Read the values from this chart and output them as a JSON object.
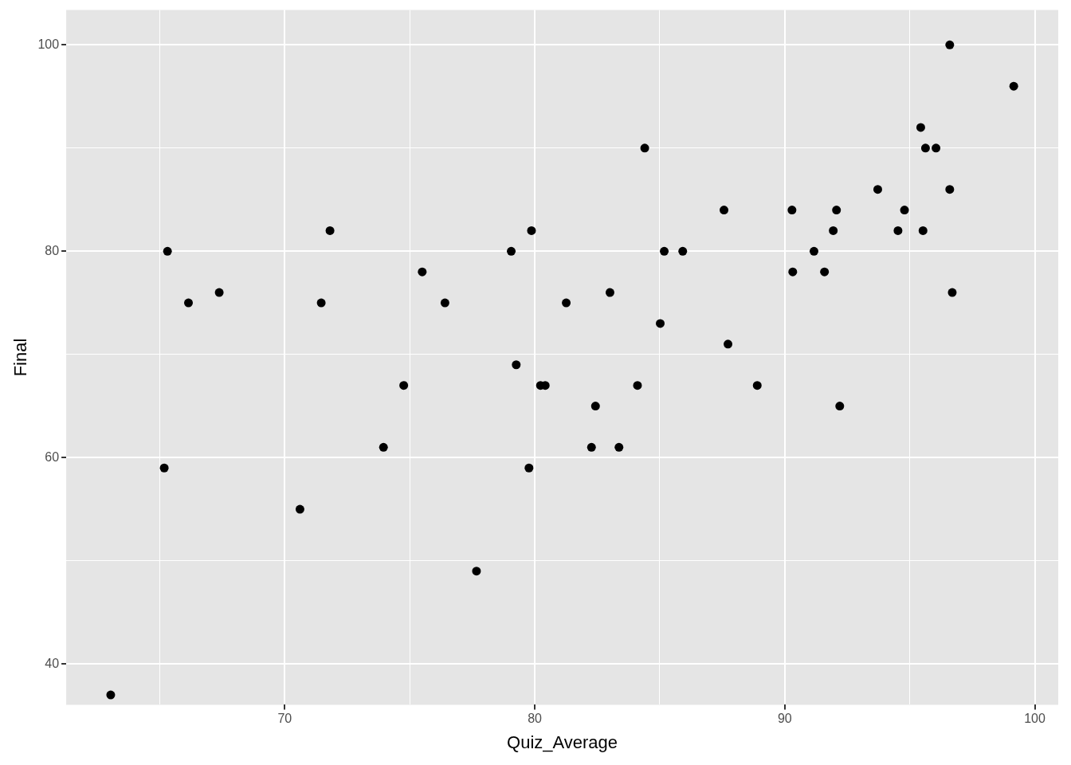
{
  "chart_data": {
    "type": "scatter",
    "xlabel": "Quiz_Average",
    "ylabel": "Final",
    "x": [
      63.04,
      65.18,
      65.31,
      66.15,
      67.38,
      70.61,
      71.46,
      71.81,
      73.95,
      74.76,
      75.5,
      76.41,
      77.67,
      79.06,
      79.26,
      79.77,
      79.87,
      80.23,
      80.42,
      81.26,
      82.27,
      82.43,
      83.01,
      83.37,
      84.11,
      84.4,
      85.02,
      85.18,
      85.92,
      87.57,
      87.73,
      88.9,
      90.29,
      90.32,
      91.17,
      91.59,
      91.94,
      92.07,
      92.2,
      93.72,
      94.53,
      94.79,
      95.44,
      95.53,
      95.63,
      96.05,
      96.6,
      96.6,
      96.7,
      99.16
    ],
    "values": [
      37,
      59,
      80,
      75,
      76,
      55,
      75,
      82,
      61,
      67,
      78,
      75,
      49,
      80,
      69,
      59,
      82,
      67,
      67,
      75,
      61,
      65,
      76,
      61,
      67,
      90,
      73,
      80,
      80,
      84,
      71,
      67,
      84,
      78,
      80,
      78,
      82,
      84,
      65,
      86,
      82,
      84,
      92,
      82,
      90,
      90,
      100,
      86,
      76,
      96
    ],
    "color": "#000000",
    "marker": "circle",
    "grid": true,
    "legend": false,
    "xlim": [
      61.26,
      100.94
    ],
    "ylim": [
      36.05,
      103.38
    ],
    "xticks": [
      {
        "value": 65,
        "label": null
      },
      70,
      {
        "value": 75,
        "label": null
      },
      80,
      {
        "value": 85,
        "label": null
      },
      90,
      {
        "value": 95,
        "label": null
      },
      100
    ],
    "yticks": [
      40,
      {
        "value": 50,
        "label": null
      },
      60,
      {
        "value": 70,
        "label": null
      },
      80,
      {
        "value": 90,
        "label": null
      },
      100
    ]
  }
}
